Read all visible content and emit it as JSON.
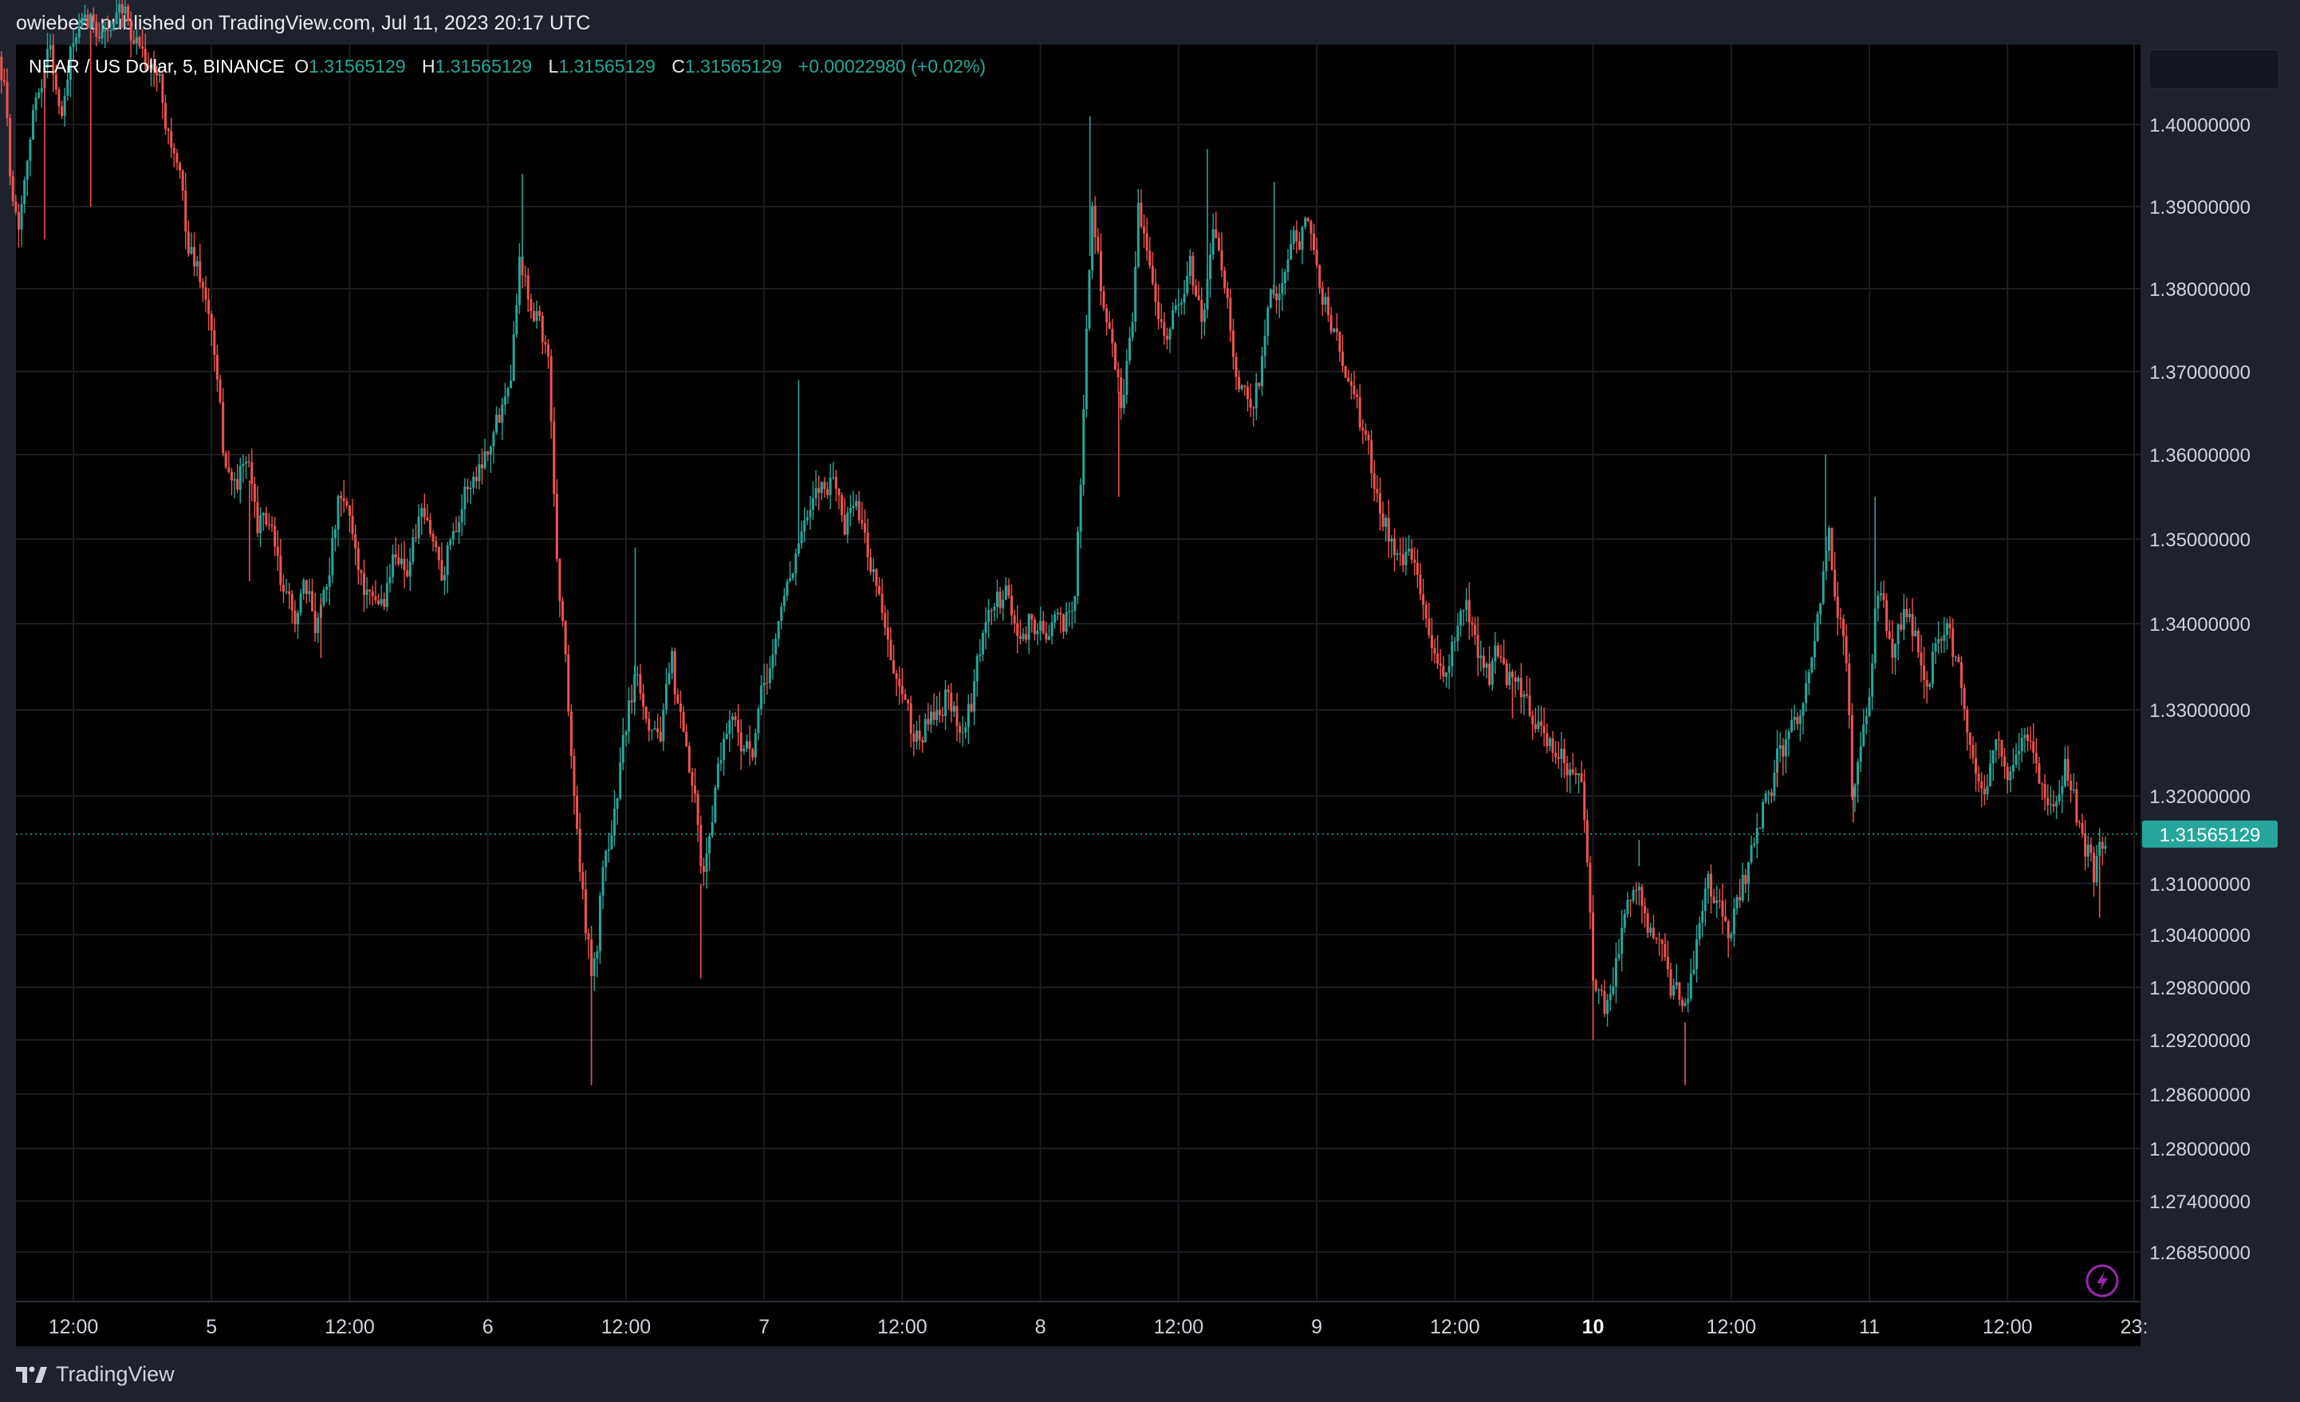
{
  "header": {
    "published_text": "owiebest published on TradingView.com, Jul 11, 2023 20:17 UTC"
  },
  "legend": {
    "symbol": "NEAR / US Dollar, 5, BINANCE",
    "open_label": "O",
    "open_value": "1.31565129",
    "high_label": "H",
    "high_value": "1.31565129",
    "low_label": "L",
    "low_value": "1.31565129",
    "close_label": "C",
    "close_value": "1.31565129",
    "change": "+0.00022980 (+0.02%)"
  },
  "footer": {
    "brand": "TradingView"
  },
  "colors": {
    "up": "#26a69a",
    "down": "#ef5350",
    "price_line": "#26a69a",
    "grid": "#1b1d23",
    "axis_text": "#d1d4dc",
    "alert_icon": "#9c27b0"
  },
  "icons": [
    "tradingview-logo-icon",
    "lightning-alert-icon"
  ],
  "chart_data": {
    "type": "candlestick",
    "interval": "5",
    "exchange": "BINANCE",
    "last_price": 1.31565129,
    "last_price_label": "1.31565129",
    "y_ticks": [
      {
        "value": 1.4,
        "label": "1.40000000"
      },
      {
        "value": 1.39,
        "label": "1.39000000"
      },
      {
        "value": 1.38,
        "label": "1.38000000"
      },
      {
        "value": 1.37,
        "label": "1.37000000"
      },
      {
        "value": 1.36,
        "label": "1.36000000"
      },
      {
        "value": 1.35,
        "label": "1.35000000"
      },
      {
        "value": 1.34,
        "label": "1.34000000"
      },
      {
        "value": 1.33,
        "label": "1.33000000"
      },
      {
        "value": 1.32,
        "label": "1.32000000"
      },
      {
        "value": 1.31,
        "label": "1.31000000"
      },
      {
        "value": 1.304,
        "label": "1.30400000"
      },
      {
        "value": 1.298,
        "label": "1.29800000"
      },
      {
        "value": 1.292,
        "label": "1.29200000"
      },
      {
        "value": 1.286,
        "label": "1.28600000"
      },
      {
        "value": 1.28,
        "label": "1.28000000"
      },
      {
        "value": 1.274,
        "label": "1.27400000"
      },
      {
        "value": 1.2685,
        "label": "1.26850000"
      }
    ],
    "x_ticks": [
      {
        "h": 12,
        "label": "12:00",
        "bold": false
      },
      {
        "h": 24,
        "label": "5",
        "bold": false
      },
      {
        "h": 36,
        "label": "12:00",
        "bold": false
      },
      {
        "h": 48,
        "label": "6",
        "bold": false
      },
      {
        "h": 60,
        "label": "12:00",
        "bold": false
      },
      {
        "h": 72,
        "label": "7",
        "bold": false
      },
      {
        "h": 84,
        "label": "12:00",
        "bold": false
      },
      {
        "h": 96,
        "label": "8",
        "bold": false
      },
      {
        "h": 108,
        "label": "12:00",
        "bold": false
      },
      {
        "h": 120,
        "label": "9",
        "bold": false
      },
      {
        "h": 132,
        "label": "12:00",
        "bold": false
      },
      {
        "h": 144,
        "label": "10",
        "bold": true
      },
      {
        "h": 156,
        "label": "12:00",
        "bold": false
      },
      {
        "h": 168,
        "label": "11",
        "bold": false
      },
      {
        "h": 180,
        "label": "12:00",
        "bold": false
      },
      {
        "h": 191,
        "label": "23:",
        "bold": false
      }
    ],
    "price_path": [
      {
        "h": 5.5,
        "p": 1.41
      },
      {
        "h": 6.0,
        "p": 1.405
      },
      {
        "h": 6.5,
        "p": 1.395
      },
      {
        "h": 7.2,
        "p": 1.388
      },
      {
        "h": 8.0,
        "p": 1.398
      },
      {
        "h": 9.0,
        "p": 1.405
      },
      {
        "h": 10.0,
        "p": 1.41
      },
      {
        "h": 11.0,
        "p": 1.4
      },
      {
        "h": 12.0,
        "p": 1.41
      },
      {
        "h": 14.0,
        "p": 1.412
      },
      {
        "h": 16.0,
        "p": 1.412
      },
      {
        "h": 18.0,
        "p": 1.41
      },
      {
        "h": 19.5,
        "p": 1.405
      },
      {
        "h": 21.0,
        "p": 1.395
      },
      {
        "h": 22.0,
        "p": 1.385
      },
      {
        "h": 23.0,
        "p": 1.382
      },
      {
        "h": 24.0,
        "p": 1.375
      },
      {
        "h": 25.0,
        "p": 1.36
      },
      {
        "h": 26.0,
        "p": 1.356
      },
      {
        "h": 27.0,
        "p": 1.359
      },
      {
        "h": 28.0,
        "p": 1.352
      },
      {
        "h": 29.0,
        "p": 1.352
      },
      {
        "h": 30.0,
        "p": 1.344
      },
      {
        "h": 31.0,
        "p": 1.34
      },
      {
        "h": 32.0,
        "p": 1.343
      },
      {
        "h": 33.0,
        "p": 1.34
      },
      {
        "h": 34.0,
        "p": 1.346
      },
      {
        "h": 35.0,
        "p": 1.354
      },
      {
        "h": 36.0,
        "p": 1.352
      },
      {
        "h": 37.0,
        "p": 1.346
      },
      {
        "h": 38.0,
        "p": 1.341
      },
      {
        "h": 39.0,
        "p": 1.343
      },
      {
        "h": 40.0,
        "p": 1.349
      },
      {
        "h": 41.0,
        "p": 1.347
      },
      {
        "h": 42.0,
        "p": 1.352
      },
      {
        "h": 43.0,
        "p": 1.35
      },
      {
        "h": 44.0,
        "p": 1.347
      },
      {
        "h": 45.0,
        "p": 1.352
      },
      {
        "h": 46.0,
        "p": 1.356
      },
      {
        "h": 47.0,
        "p": 1.358
      },
      {
        "h": 48.0,
        "p": 1.362
      },
      {
        "h": 49.0,
        "p": 1.365
      },
      {
        "h": 50.0,
        "p": 1.372
      },
      {
        "h": 50.8,
        "p": 1.385
      },
      {
        "h": 51.5,
        "p": 1.38
      },
      {
        "h": 52.5,
        "p": 1.378
      },
      {
        "h": 53.3,
        "p": 1.37
      },
      {
        "h": 54.0,
        "p": 1.348
      },
      {
        "h": 54.8,
        "p": 1.335
      },
      {
        "h": 55.5,
        "p": 1.32
      },
      {
        "h": 56.0,
        "p": 1.312
      },
      {
        "h": 56.5,
        "p": 1.304
      },
      {
        "h": 57.0,
        "p": 1.3
      },
      {
        "h": 57.5,
        "p": 1.303
      },
      {
        "h": 58.0,
        "p": 1.312
      },
      {
        "h": 59.0,
        "p": 1.318
      },
      {
        "h": 60.0,
        "p": 1.328
      },
      {
        "h": 61.0,
        "p": 1.335
      },
      {
        "h": 62.0,
        "p": 1.33
      },
      {
        "h": 63.0,
        "p": 1.328
      },
      {
        "h": 64.0,
        "p": 1.334
      },
      {
        "h": 65.0,
        "p": 1.325
      },
      {
        "h": 66.0,
        "p": 1.318
      },
      {
        "h": 66.5,
        "p": 1.31
      },
      {
        "h": 67.0,
        "p": 1.312
      },
      {
        "h": 68.0,
        "p": 1.324
      },
      {
        "h": 69.0,
        "p": 1.33
      },
      {
        "h": 70.0,
        "p": 1.327
      },
      {
        "h": 71.0,
        "p": 1.324
      },
      {
        "h": 72.0,
        "p": 1.332
      },
      {
        "h": 73.0,
        "p": 1.338
      },
      {
        "h": 74.0,
        "p": 1.345
      },
      {
        "h": 75.0,
        "p": 1.35
      },
      {
        "h": 76.0,
        "p": 1.352
      },
      {
        "h": 77.0,
        "p": 1.356
      },
      {
        "h": 78.0,
        "p": 1.358
      },
      {
        "h": 79.0,
        "p": 1.352
      },
      {
        "h": 80.0,
        "p": 1.355
      },
      {
        "h": 81.0,
        "p": 1.348
      },
      {
        "h": 82.0,
        "p": 1.345
      },
      {
        "h": 83.0,
        "p": 1.335
      },
      {
        "h": 84.0,
        "p": 1.33
      },
      {
        "h": 85.0,
        "p": 1.326
      },
      {
        "h": 86.0,
        "p": 1.328
      },
      {
        "h": 87.0,
        "p": 1.33
      },
      {
        "h": 88.0,
        "p": 1.333
      },
      {
        "h": 89.0,
        "p": 1.328
      },
      {
        "h": 90.0,
        "p": 1.33
      },
      {
        "h": 91.0,
        "p": 1.338
      },
      {
        "h": 92.0,
        "p": 1.342
      },
      {
        "h": 93.0,
        "p": 1.343
      },
      {
        "h": 94.0,
        "p": 1.338
      },
      {
        "h": 95.0,
        "p": 1.341
      },
      {
        "h": 96.0,
        "p": 1.339
      },
      {
        "h": 97.0,
        "p": 1.341
      },
      {
        "h": 98.0,
        "p": 1.338
      },
      {
        "h": 99.0,
        "p": 1.345
      },
      {
        "h": 99.5,
        "p": 1.356
      },
      {
        "h": 100.0,
        "p": 1.375
      },
      {
        "h": 100.5,
        "p": 1.39
      },
      {
        "h": 101.0,
        "p": 1.384
      },
      {
        "h": 101.5,
        "p": 1.378
      },
      {
        "h": 102.0,
        "p": 1.374
      },
      {
        "h": 103.0,
        "p": 1.366
      },
      {
        "h": 103.5,
        "p": 1.372
      },
      {
        "h": 104.0,
        "p": 1.378
      },
      {
        "h": 104.5,
        "p": 1.39
      },
      {
        "h": 105.0,
        "p": 1.385
      },
      {
        "h": 106.0,
        "p": 1.381
      },
      {
        "h": 107.0,
        "p": 1.375
      },
      {
        "h": 108.0,
        "p": 1.378
      },
      {
        "h": 109.0,
        "p": 1.382
      },
      {
        "h": 110.0,
        "p": 1.376
      },
      {
        "h": 111.0,
        "p": 1.385
      },
      {
        "h": 112.0,
        "p": 1.382
      },
      {
        "h": 113.0,
        "p": 1.37
      },
      {
        "h": 114.0,
        "p": 1.365
      },
      {
        "h": 115.0,
        "p": 1.37
      },
      {
        "h": 116.0,
        "p": 1.378
      },
      {
        "h": 117.0,
        "p": 1.382
      },
      {
        "h": 118.0,
        "p": 1.385
      },
      {
        "h": 119.0,
        "p": 1.388
      },
      {
        "h": 120.0,
        "p": 1.382
      },
      {
        "h": 121.0,
        "p": 1.378
      },
      {
        "h": 122.0,
        "p": 1.372
      },
      {
        "h": 123.0,
        "p": 1.368
      },
      {
        "h": 124.0,
        "p": 1.362
      },
      {
        "h": 125.0,
        "p": 1.356
      },
      {
        "h": 126.0,
        "p": 1.352
      },
      {
        "h": 127.0,
        "p": 1.348
      },
      {
        "h": 128.0,
        "p": 1.347
      },
      {
        "h": 129.0,
        "p": 1.345
      },
      {
        "h": 130.0,
        "p": 1.336
      },
      {
        "h": 131.0,
        "p": 1.333
      },
      {
        "h": 132.0,
        "p": 1.338
      },
      {
        "h": 133.0,
        "p": 1.34
      },
      {
        "h": 134.0,
        "p": 1.336
      },
      {
        "h": 135.0,
        "p": 1.334
      },
      {
        "h": 136.0,
        "p": 1.336
      },
      {
        "h": 137.0,
        "p": 1.333
      },
      {
        "h": 138.0,
        "p": 1.33
      },
      {
        "h": 139.0,
        "p": 1.33
      },
      {
        "h": 140.0,
        "p": 1.328
      },
      {
        "h": 141.0,
        "p": 1.322
      },
      {
        "h": 142.0,
        "p": 1.324
      },
      {
        "h": 143.0,
        "p": 1.32
      },
      {
        "h": 143.5,
        "p": 1.312
      },
      {
        "h": 144.0,
        "p": 1.3
      },
      {
        "h": 145.0,
        "p": 1.296
      },
      {
        "h": 146.0,
        "p": 1.302
      },
      {
        "h": 147.0,
        "p": 1.308
      },
      {
        "h": 148.0,
        "p": 1.312
      },
      {
        "h": 149.0,
        "p": 1.305
      },
      {
        "h": 150.0,
        "p": 1.3
      },
      {
        "h": 151.0,
        "p": 1.297
      },
      {
        "h": 152.0,
        "p": 1.294
      },
      {
        "h": 153.0,
        "p": 1.302
      },
      {
        "h": 154.0,
        "p": 1.31
      },
      {
        "h": 155.0,
        "p": 1.306
      },
      {
        "h": 156.0,
        "p": 1.304
      },
      {
        "h": 157.0,
        "p": 1.31
      },
      {
        "h": 158.0,
        "p": 1.314
      },
      {
        "h": 159.0,
        "p": 1.32
      },
      {
        "h": 160.0,
        "p": 1.324
      },
      {
        "h": 161.0,
        "p": 1.326
      },
      {
        "h": 162.0,
        "p": 1.33
      },
      {
        "h": 163.0,
        "p": 1.338
      },
      {
        "h": 164.0,
        "p": 1.346
      },
      {
        "h": 164.5,
        "p": 1.352
      },
      {
        "h": 165.0,
        "p": 1.345
      },
      {
        "h": 166.0,
        "p": 1.335
      },
      {
        "h": 166.5,
        "p": 1.32
      },
      {
        "h": 167.0,
        "p": 1.325
      },
      {
        "h": 168.0,
        "p": 1.33
      },
      {
        "h": 168.5,
        "p": 1.34
      },
      {
        "h": 169.0,
        "p": 1.342
      },
      {
        "h": 170.0,
        "p": 1.336
      },
      {
        "h": 171.0,
        "p": 1.34
      },
      {
        "h": 172.0,
        "p": 1.338
      },
      {
        "h": 173.0,
        "p": 1.334
      },
      {
        "h": 174.0,
        "p": 1.34
      },
      {
        "h": 175.0,
        "p": 1.338
      },
      {
        "h": 176.0,
        "p": 1.332
      },
      {
        "h": 177.0,
        "p": 1.325
      },
      {
        "h": 178.0,
        "p": 1.322
      },
      {
        "h": 179.0,
        "p": 1.324
      },
      {
        "h": 180.0,
        "p": 1.322
      },
      {
        "h": 181.0,
        "p": 1.326
      },
      {
        "h": 182.0,
        "p": 1.326
      },
      {
        "h": 183.0,
        "p": 1.322
      },
      {
        "h": 184.0,
        "p": 1.32
      },
      {
        "h": 185.0,
        "p": 1.325
      },
      {
        "h": 186.0,
        "p": 1.318
      },
      {
        "h": 187.0,
        "p": 1.314
      },
      {
        "h": 187.5,
        "p": 1.31
      },
      {
        "h": 188.0,
        "p": 1.313
      },
      {
        "h": 188.7,
        "p": 1.3157
      }
    ],
    "spikes": [
      {
        "h": 9.5,
        "p": 1.386
      },
      {
        "h": 13.5,
        "p": 1.39
      },
      {
        "h": 27.3,
        "p": 1.345
      },
      {
        "h": 33.5,
        "p": 1.336
      },
      {
        "h": 51.0,
        "p": 1.394
      },
      {
        "h": 57.0,
        "p": 1.287
      },
      {
        "h": 60.8,
        "p": 1.349
      },
      {
        "h": 66.5,
        "p": 1.299
      },
      {
        "h": 75.0,
        "p": 1.369
      },
      {
        "h": 100.3,
        "p": 1.401
      },
      {
        "h": 102.8,
        "p": 1.355
      },
      {
        "h": 110.5,
        "p": 1.397
      },
      {
        "h": 116.3,
        "p": 1.393
      },
      {
        "h": 137.0,
        "p": 1.329
      },
      {
        "h": 144.0,
        "p": 1.292
      },
      {
        "h": 148.0,
        "p": 1.315
      },
      {
        "h": 152.0,
        "p": 1.287
      },
      {
        "h": 160.0,
        "p": 1.321
      },
      {
        "h": 164.2,
        "p": 1.36
      },
      {
        "h": 166.6,
        "p": 1.317
      },
      {
        "h": 168.5,
        "p": 1.355
      },
      {
        "h": 188.0,
        "p": 1.306
      }
    ],
    "x_range_hours": [
      0,
      191.8
    ],
    "last_bar_hour": 188.7
  }
}
